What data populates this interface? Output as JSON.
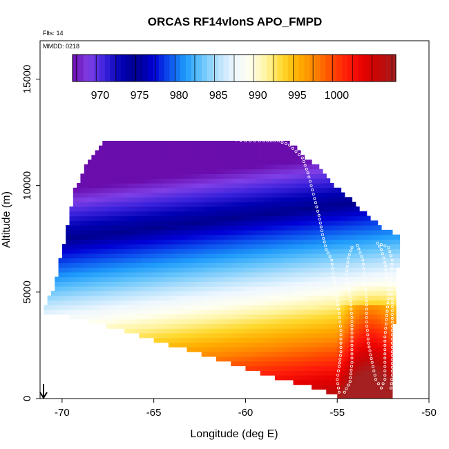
{
  "chart_data": {
    "type": "heatmap",
    "title": "ORCAS RF14vlonS APO_FMPD",
    "annotations": {
      "flights": "Flts: 14",
      "date": "MMDD: 0218"
    },
    "xlabel": "Longitude (deg E)",
    "ylabel": "Altitude (m)",
    "xlim": [
      -71.2,
      -50
    ],
    "ylim": [
      0,
      16800
    ],
    "x_ticks": [
      -70,
      -65,
      -60,
      -55,
      -50
    ],
    "x_tick_labels": [
      "-70",
      "-65",
      "-60",
      "-55",
      "-50"
    ],
    "y_ticks": [
      0,
      5000,
      10000,
      15000
    ],
    "y_tick_labels": [
      "0",
      "5000",
      "10000",
      "15000"
    ],
    "grid": false,
    "colorbar": {
      "min": 966.5,
      "max": 1007.5,
      "ticks": [
        970,
        975,
        980,
        985,
        990,
        995,
        1000
      ],
      "tick_labels": [
        "970",
        "975",
        "980",
        "985",
        "990",
        "995",
        "1000"
      ],
      "colors": [
        "#6a0dad",
        "#7f3fe6",
        "#3a22dc",
        "#0000b4",
        "#00008e",
        "#0000d6",
        "#0c52ee",
        "#1f9cfb",
        "#67c5fb",
        "#b5e1fc",
        "#eef7ff",
        "#fffff0",
        "#fff4a0",
        "#ffd72a",
        "#ffae00",
        "#ff8400",
        "#ff4c00",
        "#ff1c0a",
        "#e60000",
        "#c40808",
        "#a52020"
      ]
    },
    "field_model": {
      "surface_value": 1005,
      "lapse_per_km": 3.55,
      "tilt_per_deg_lon": 0.38,
      "reference_lon": -60,
      "gradient_top_km": 13.5,
      "eastern_anomaly_lon": [
        -55,
        -51.6
      ]
    },
    "curtain_outline": [
      [
        -71.0,
        4000
      ],
      [
        -71.0,
        4400
      ],
      [
        -70.8,
        4500
      ],
      [
        -70.6,
        5000
      ],
      [
        -70.4,
        5300
      ],
      [
        -70.2,
        6200
      ],
      [
        -70.0,
        6900
      ],
      [
        -69.8,
        7700
      ],
      [
        -69.6,
        8500
      ],
      [
        -69.4,
        9600
      ],
      [
        -69.1,
        10200
      ],
      [
        -68.9,
        10600
      ],
      [
        -68.7,
        11000
      ],
      [
        -68.4,
        11300
      ],
      [
        -68.1,
        11700
      ],
      [
        -67.7,
        12100
      ],
      [
        -57.7,
        12100
      ],
      [
        -57.2,
        11700
      ],
      [
        -56.7,
        11300
      ],
      [
        -56.2,
        11000
      ],
      [
        -55.7,
        10500
      ],
      [
        -55.2,
        10000
      ],
      [
        -54.6,
        9600
      ],
      [
        -54.0,
        9200
      ],
      [
        -53.5,
        8700
      ],
      [
        -53.0,
        8400
      ],
      [
        -52.5,
        8000
      ],
      [
        -52.0,
        7800
      ],
      [
        -51.5,
        7600
      ],
      [
        -51.5,
        7100
      ],
      [
        -51.7,
        6200
      ],
      [
        -51.7,
        4000
      ],
      [
        -51.9,
        3600
      ],
      [
        -51.9,
        0
      ],
      [
        -54.8,
        0
      ],
      [
        -55.4,
        300
      ],
      [
        -56.5,
        600
      ],
      [
        -58.0,
        900
      ],
      [
        -59.5,
        1300
      ],
      [
        -61.0,
        1700
      ],
      [
        -62.5,
        2100
      ],
      [
        -64.0,
        2500
      ],
      [
        -65.5,
        2900
      ],
      [
        -67.0,
        3300
      ],
      [
        -68.5,
        3600
      ],
      [
        -69.8,
        3900
      ]
    ],
    "flight_track": [
      [
        -67.6,
        12200
      ],
      [
        -67.0,
        12200
      ],
      [
        -66.0,
        12200
      ],
      [
        -65.0,
        12200
      ],
      [
        -64.0,
        12200
      ],
      [
        -63.0,
        12200
      ],
      [
        -62.0,
        12200
      ],
      [
        -61.0,
        12200
      ],
      [
        -60.0,
        12100
      ],
      [
        -59.0,
        12100
      ],
      [
        -58.2,
        12100
      ],
      [
        -57.6,
        11900
      ],
      [
        -56.9,
        11300
      ],
      [
        -56.6,
        10600
      ],
      [
        -56.3,
        9600
      ],
      [
        -56.0,
        8600
      ],
      [
        -55.8,
        7700
      ],
      [
        -55.6,
        7000
      ],
      [
        -55.3,
        6500
      ],
      [
        -55.2,
        5700
      ],
      [
        -55.1,
        5200
      ],
      [
        -55.0,
        4600
      ],
      [
        -54.9,
        4000
      ],
      [
        -54.8,
        3200
      ],
      [
        -54.8,
        2200
      ],
      [
        -54.9,
        1500
      ],
      [
        -55.0,
        900
      ],
      [
        -54.9,
        300
      ],
      [
        -54.6,
        300
      ],
      [
        -54.3,
        800
      ],
      [
        -54.2,
        1700
      ],
      [
        -54.2,
        2700
      ],
      [
        -54.2,
        3800
      ],
      [
        -54.3,
        4800
      ],
      [
        -54.5,
        5800
      ],
      [
        -54.4,
        6600
      ],
      [
        -54.2,
        7100
      ],
      [
        -53.9,
        7200
      ],
      [
        -53.6,
        6500
      ],
      [
        -53.5,
        5500
      ],
      [
        -53.4,
        4600
      ],
      [
        -53.4,
        3600
      ],
      [
        -53.3,
        2600
      ],
      [
        -53.1,
        1700
      ],
      [
        -52.9,
        900
      ],
      [
        -52.6,
        500
      ],
      [
        -52.4,
        900
      ],
      [
        -52.4,
        1900
      ],
      [
        -52.4,
        2900
      ],
      [
        -52.3,
        3900
      ],
      [
        -52.2,
        4900
      ],
      [
        -52.3,
        5700
      ],
      [
        -52.4,
        6400
      ],
      [
        -52.6,
        7000
      ],
      [
        -52.8,
        7300
      ],
      [
        -52.2,
        7100
      ],
      [
        -52.0,
        6500
      ],
      [
        -52.1,
        5500
      ],
      [
        -52.0,
        4500
      ],
      [
        -52.0,
        3400
      ],
      [
        -52.0,
        2200
      ],
      [
        -52.0,
        1100
      ],
      [
        -52.1,
        300
      ]
    ]
  }
}
